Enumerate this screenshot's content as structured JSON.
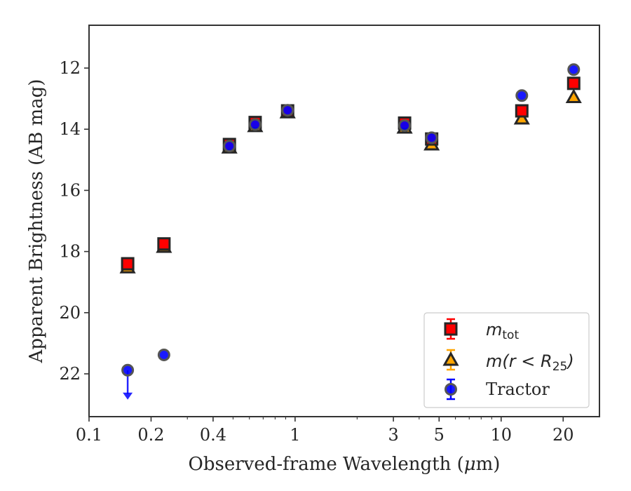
{
  "chart_data": {
    "type": "scatter",
    "xlabel": "Observed-frame Wavelength (μm)",
    "ylabel": "Apparent Brightness (AB mag)",
    "xscale": "log",
    "xlim": [
      0.1,
      30
    ],
    "ylim": [
      23.4,
      10.6
    ],
    "y_inverted": true,
    "xticks": [
      0.1,
      0.2,
      0.4,
      1,
      3,
      5,
      10,
      20
    ],
    "xtick_labels": [
      "0.1",
      "0.2",
      "0.4",
      "1",
      "3",
      "5",
      "10",
      "20"
    ],
    "yticks": [
      12,
      14,
      16,
      18,
      20,
      22
    ],
    "ytick_labels": [
      "12",
      "14",
      "16",
      "18",
      "20",
      "22"
    ],
    "grid": false,
    "legend_position": "lower-right",
    "series": [
      {
        "name": "m_tot",
        "marker": "square",
        "color": "#ff0000",
        "edge_color": "#262626",
        "points": [
          {
            "x": 0.154,
            "y": 18.4
          },
          {
            "x": 0.231,
            "y": 17.75
          },
          {
            "x": 0.48,
            "y": 14.5
          },
          {
            "x": 0.64,
            "y": 13.78
          },
          {
            "x": 0.92,
            "y": 13.4
          },
          {
            "x": 3.4,
            "y": 13.8
          },
          {
            "x": 4.6,
            "y": 14.32
          },
          {
            "x": 12.6,
            "y": 13.4
          },
          {
            "x": 22.5,
            "y": 12.5
          }
        ]
      },
      {
        "name": "m(r < R_25)",
        "marker": "triangle",
        "color": "#ffa500",
        "edge_color": "#262626",
        "points": [
          {
            "x": 0.154,
            "y": 18.52
          },
          {
            "x": 0.231,
            "y": 17.85
          },
          {
            "x": 0.48,
            "y": 14.6
          },
          {
            "x": 0.64,
            "y": 13.9
          },
          {
            "x": 0.92,
            "y": 13.45
          },
          {
            "x": 3.4,
            "y": 13.95
          },
          {
            "x": 4.6,
            "y": 14.5
          },
          {
            "x": 12.6,
            "y": 13.65
          },
          {
            "x": 22.5,
            "y": 12.95
          }
        ]
      },
      {
        "name": "Tractor",
        "marker": "circle",
        "color": "#0000ff",
        "edge_color": "#555555",
        "points": [
          {
            "x": 0.154,
            "y": 21.88,
            "upper_limit": true
          },
          {
            "x": 0.231,
            "y": 21.38
          },
          {
            "x": 0.48,
            "y": 14.55
          },
          {
            "x": 0.64,
            "y": 13.85
          },
          {
            "x": 0.92,
            "y": 13.38
          },
          {
            "x": 3.4,
            "y": 13.88
          },
          {
            "x": 4.6,
            "y": 14.28
          },
          {
            "x": 12.6,
            "y": 12.9
          },
          {
            "x": 22.5,
            "y": 12.05
          }
        ]
      }
    ]
  },
  "legend": {
    "entries": [
      {
        "symbol": "m",
        "subscript": "tot"
      },
      {
        "prefix": "m(",
        "symbol": "r",
        "lt": " < ",
        "symbol2": "R",
        "subscript": "25",
        "suffix": ")"
      },
      {
        "text": "Tractor"
      }
    ]
  },
  "axis_labels": {
    "x_prefix": "Observed-frame Wavelength (",
    "x_mu": "μ",
    "x_suffix": "m)",
    "y": "Apparent Brightness (AB mag)"
  }
}
